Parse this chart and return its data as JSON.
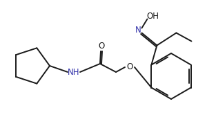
{
  "background": "#ffffff",
  "line_color": "#1a1a1a",
  "text_color": "#1a1a1a",
  "label_N": "N",
  "label_O": "O",
  "label_OH": "OH",
  "label_NH": "NH",
  "color_N": "#3333aa",
  "color_O": "#1a1a1a",
  "color_NH": "#3333aa",
  "figsize": [
    3.13,
    1.92
  ],
  "dpi": 100,
  "lw": 1.4
}
